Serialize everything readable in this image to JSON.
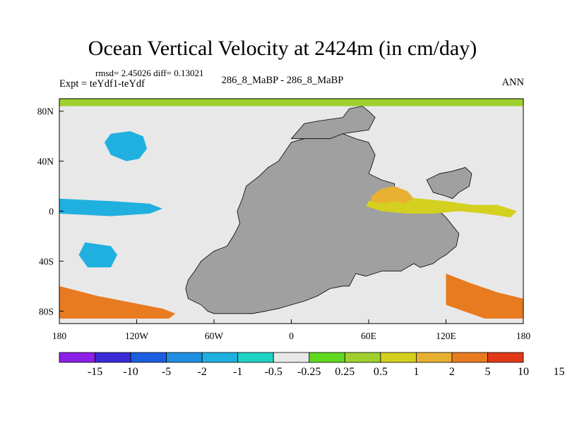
{
  "chart_data": {
    "type": "heatmap",
    "title": "Ocean Vertical Velocity at 2424m (in cm/day)",
    "stats_line": "rmsd= 2.45026 diff= 0.13021",
    "experiment_label": "Expt = teYdf1-teYdf",
    "case_label": "286_8_MaBP - 286_8_MaBP",
    "season_label": "ANN",
    "x_range": [
      -180,
      180
    ],
    "y_range": [
      -90,
      90
    ],
    "x_ticks": [
      {
        "value": -180,
        "label": "180"
      },
      {
        "value": -120,
        "label": "120W"
      },
      {
        "value": -60,
        "label": "60W"
      },
      {
        "value": 0,
        "label": "0"
      },
      {
        "value": 60,
        "label": "60E"
      },
      {
        "value": 120,
        "label": "120E"
      },
      {
        "value": 180,
        "label": "180"
      }
    ],
    "y_ticks": [
      {
        "value": 80,
        "label": "80N"
      },
      {
        "value": 40,
        "label": "40N"
      },
      {
        "value": 0,
        "label": "0"
      },
      {
        "value": -40,
        "label": "40S"
      },
      {
        "value": -80,
        "label": "80S"
      }
    ],
    "colorbar": {
      "colors": [
        "#8c1fe8",
        "#3a2bd6",
        "#1c5ee0",
        "#1f8ee0",
        "#20b0e0",
        "#20d2c4",
        "#e8e8e8",
        "#60d820",
        "#a0d030",
        "#d4d020",
        "#e8b030",
        "#e87a20",
        "#e23a18"
      ],
      "labels": [
        "-15",
        "-10",
        "-5",
        "-2",
        "-1",
        "-0.5",
        "-0.25",
        "0.25",
        "0.5",
        "1",
        "2",
        "5",
        "10",
        "15"
      ]
    },
    "land_color": "#a0a0a0",
    "ocean_background_color": "#e8e8e8",
    "regions": [
      {
        "name": "continent",
        "level": "land",
        "lon": [
          -35,
          -25,
          -18,
          -10,
          0,
          10,
          20,
          30,
          40,
          50,
          60,
          65,
          62,
          60,
          70,
          80,
          80,
          90,
          100,
          110,
          120,
          130,
          128,
          120,
          115,
          110,
          100,
          95,
          85,
          70,
          58,
          50,
          45,
          40,
          30,
          20,
          10,
          0,
          -10,
          -20,
          -30,
          -40,
          -45,
          -55,
          -60,
          -65,
          -70,
          -80,
          -82,
          -80,
          -75,
          -70,
          -60,
          -50,
          -45,
          -40,
          -42,
          -40,
          -38,
          -35
        ],
        "lat": [
          20,
          28,
          35,
          40,
          55,
          58,
          60,
          62,
          62,
          58,
          55,
          45,
          35,
          30,
          25,
          22,
          10,
          8,
          5,
          5,
          -5,
          -18,
          -28,
          -35,
          -38,
          -42,
          -45,
          -42,
          -48,
          -48,
          -52,
          -50,
          -60,
          -60,
          -62,
          -68,
          -72,
          -75,
          -78,
          -80,
          -82,
          -82,
          -82,
          -82,
          -82,
          -80,
          -75,
          -70,
          -62,
          -55,
          -48,
          -40,
          -32,
          -28,
          -20,
          -10,
          0,
          5,
          10,
          20
        ]
      },
      {
        "name": "arctic-north-pole-land",
        "level": "land",
        "lon": [
          0,
          30,
          40,
          60,
          65,
          60,
          55,
          45,
          40,
          20,
          10,
          0
        ],
        "lat": [
          58,
          58,
          62,
          65,
          75,
          80,
          84,
          82,
          75,
          72,
          70,
          58
        ]
      },
      {
        "name": "eastern-landmass",
        "level": "land",
        "lon": [
          105,
          115,
          125,
          135,
          140,
          138,
          130,
          125,
          120,
          110,
          105
        ],
        "lat": [
          25,
          30,
          32,
          35,
          30,
          20,
          15,
          10,
          12,
          15,
          25
        ]
      },
      {
        "name": "arctic-band",
        "level": "pos1",
        "lon": [
          -180,
          180,
          180,
          -180
        ],
        "lat": [
          84,
          84,
          90,
          90
        ]
      },
      {
        "name": "north-pacific-eddy",
        "level": "neg1",
        "lon": [
          -140,
          -125,
          -115,
          -112,
          -118,
          -128,
          -140,
          -145
        ],
        "lat": [
          62,
          64,
          60,
          50,
          42,
          40,
          45,
          55
        ]
      },
      {
        "name": "equatorial-east-band",
        "level": "pos2",
        "lon": [
          60,
          80,
          100,
          120,
          140,
          160,
          175,
          170,
          150,
          130,
          110,
          90,
          70,
          58
        ],
        "lat": [
          8,
          12,
          10,
          8,
          5,
          5,
          0,
          -5,
          -2,
          0,
          -2,
          -2,
          0,
          4
        ]
      },
      {
        "name": "equatorial-west-band",
        "level": "neg1",
        "lon": [
          -180,
          -140,
          -110,
          -100,
          -110,
          -140,
          -180
        ],
        "lat": [
          10,
          8,
          6,
          2,
          -2,
          -4,
          -2
        ]
      },
      {
        "name": "southern-ocean-west",
        "level": "pos3",
        "lon": [
          -180,
          -150,
          -120,
          -100,
          -90,
          -95,
          -120,
          -150,
          -180
        ],
        "lat": [
          -60,
          -68,
          -74,
          -78,
          -82,
          -86,
          -86,
          -86,
          -86
        ]
      },
      {
        "name": "southern-ocean-east",
        "level": "pos3",
        "lon": [
          120,
          140,
          160,
          180,
          180,
          150,
          120
        ],
        "lat": [
          -50,
          -58,
          -65,
          -70,
          -86,
          -86,
          -75
        ]
      },
      {
        "name": "south-pacific-eddy",
        "level": "neg1",
        "lon": [
          -160,
          -140,
          -135,
          -140,
          -158,
          -165
        ],
        "lat": [
          -25,
          -28,
          -35,
          -45,
          -45,
          -35
        ]
      },
      {
        "name": "indian-ocean-jet",
        "level": "pos4",
        "lon": [
          62,
          70,
          80,
          90,
          95,
          88,
          80,
          70,
          62
        ],
        "lat": [
          12,
          18,
          20,
          16,
          10,
          6,
          8,
          6,
          8
        ]
      }
    ]
  }
}
